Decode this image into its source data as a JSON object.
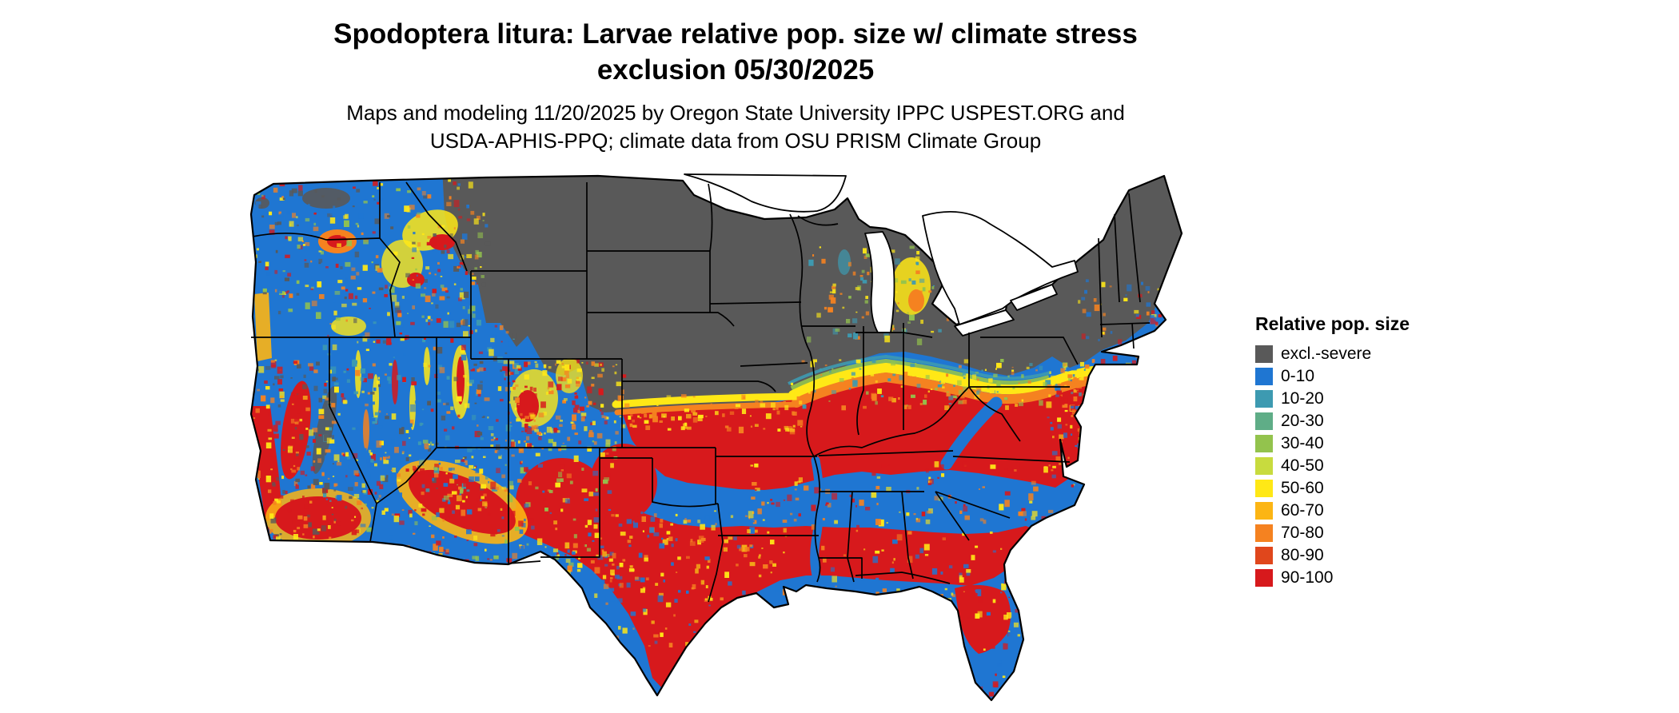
{
  "title": {
    "line1": "Spodoptera litura: Larvae relative pop. size w/ climate stress",
    "line2": "exclusion 05/30/2025"
  },
  "subtitle": {
    "line1": "Maps and modeling 11/20/2025 by Oregon State University IPPC USPEST.ORG and",
    "line2": "USDA-APHIS-PPQ; climate data from OSU PRISM Climate Group"
  },
  "legend": {
    "title": "Relative pop. size",
    "items": [
      {
        "label": "excl.-severe",
        "color": "#595959"
      },
      {
        "label": "0-10",
        "color": "#1F76D2"
      },
      {
        "label": "10-20",
        "color": "#3D9AB1"
      },
      {
        "label": "20-30",
        "color": "#5FAD87"
      },
      {
        "label": "30-40",
        "color": "#93C34D"
      },
      {
        "label": "40-50",
        "color": "#C8DB3E"
      },
      {
        "label": "50-60",
        "color": "#FFE816"
      },
      {
        "label": "60-70",
        "color": "#FCB514"
      },
      {
        "label": "70-80",
        "color": "#F58220"
      },
      {
        "label": "80-90",
        "color": "#E0471C"
      },
      {
        "label": "90-100",
        "color": "#D7191C"
      }
    ]
  }
}
